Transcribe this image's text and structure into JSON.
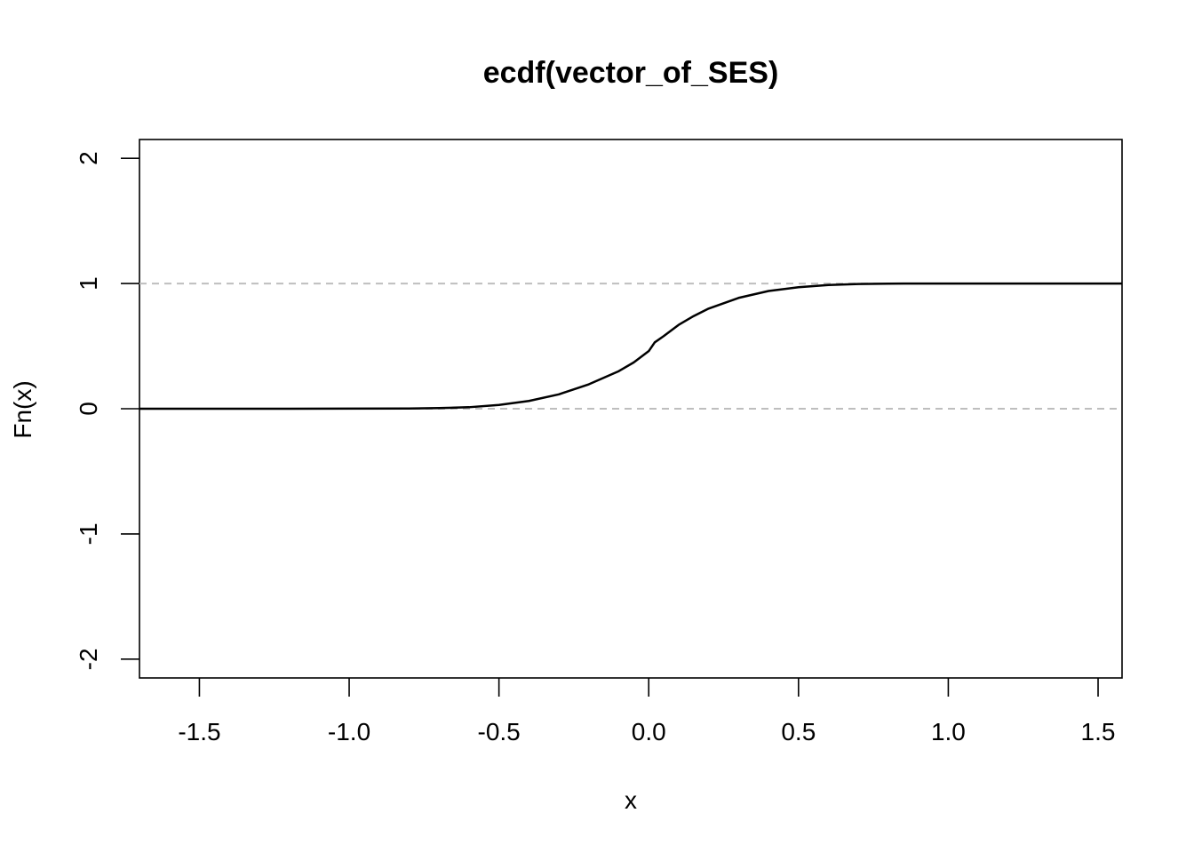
{
  "chart_data": {
    "type": "line",
    "title": "ecdf(vector_of_SES)",
    "xlabel": "x",
    "ylabel": "Fn(x)",
    "xlim": [
      -1.7,
      1.58
    ],
    "ylim": [
      -2.15,
      2.15
    ],
    "x_ticks": [
      -1.5,
      -1.0,
      -0.5,
      0.0,
      0.5,
      1.0,
      1.5
    ],
    "x_tick_labels": [
      "-1.5",
      "-1.0",
      "-0.5",
      "0.0",
      "0.5",
      "1.0",
      "1.5"
    ],
    "y_ticks": [
      -2,
      -1,
      0,
      1,
      2
    ],
    "y_tick_labels": [
      "-2",
      "-1",
      "0",
      "1",
      "2"
    ],
    "reference_lines": [
      0,
      1
    ],
    "reference_line_color": "#bebebe",
    "line_color": "#000000",
    "series": [
      {
        "x": [
          -1.7,
          -1.2,
          -0.8,
          -0.7,
          -0.6,
          -0.5,
          -0.4,
          -0.3,
          -0.2,
          -0.1,
          -0.05,
          0.0,
          0.02,
          0.05,
          0.1,
          0.15,
          0.2,
          0.3,
          0.4,
          0.5,
          0.6,
          0.7,
          0.8,
          1.0,
          1.58
        ],
        "y": [
          0.0,
          0.0,
          0.002,
          0.005,
          0.012,
          0.03,
          0.062,
          0.115,
          0.195,
          0.3,
          0.37,
          0.46,
          0.53,
          0.58,
          0.67,
          0.74,
          0.8,
          0.885,
          0.94,
          0.97,
          0.988,
          0.996,
          0.999,
          1.0,
          1.0
        ]
      }
    ]
  }
}
